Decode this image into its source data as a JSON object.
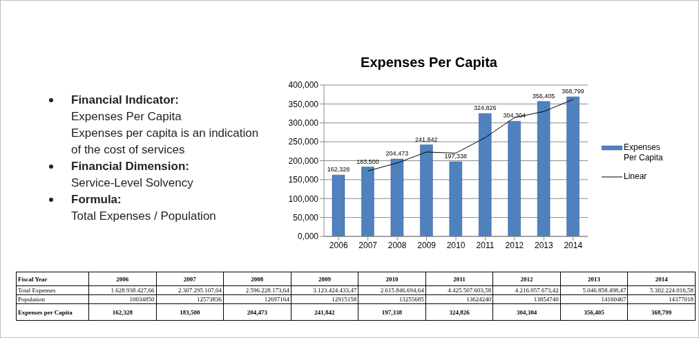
{
  "chart_data": {
    "type": "bar",
    "title": "Expenses Per Capita",
    "categories": [
      "2006",
      "2007",
      "2008",
      "2009",
      "2010",
      "2011",
      "2012",
      "2013",
      "2014"
    ],
    "series": [
      {
        "name": "Expenses Per Capita",
        "color": "#4f81bd",
        "values": [
          162.328,
          183.5,
          204.473,
          241.842,
          197.338,
          324.826,
          304.304,
          356.405,
          368.799
        ],
        "value_labels": [
          "162,328",
          "183,500",
          "204,473",
          "241,842",
          "197,338",
          "324,826",
          "304,304",
          "356,405",
          "368,799"
        ]
      },
      {
        "name": "Linear",
        "type": "line",
        "color": "#000000",
        "values": [
          null,
          173,
          194,
          223,
          220,
          261,
          314,
          330,
          362
        ]
      }
    ],
    "ylim": [
      0,
      400
    ],
    "yticks": [
      {
        "value": 0,
        "label": "0,000"
      },
      {
        "value": 50,
        "label": "50,000"
      },
      {
        "value": 100,
        "label": "100,000"
      },
      {
        "value": 150,
        "label": "150,000"
      },
      {
        "value": 200,
        "label": "200,000"
      },
      {
        "value": 250,
        "label": "250,000"
      },
      {
        "value": 300,
        "label": "300,000"
      },
      {
        "value": 350,
        "label": "350,000"
      },
      {
        "value": 400,
        "label": "400,000"
      }
    ],
    "grid": "y",
    "legend": "right",
    "annotations": [
      "Financial Indicator:",
      "Expenses Per Capita",
      "Expenses per capita is an indication of the cost of services",
      "Financial Dimension:",
      "Service-Level  Solvency",
      "Formula:",
      "Total Expenses / Population",
      "Fiscal Year",
      "Total Expenses",
      "1.628.938.427,66",
      "2.307.295.107,04",
      "2.596.228.173,64",
      "3.123.424.433,47",
      "2.615.846.694,64",
      "4.425.507.603,58",
      "4.216.057.673,42",
      "5.046.858.498,47",
      "5.302.224.016,58",
      "Population",
      "10034850",
      "12573836",
      "12697164",
      "12915158",
      "13255685",
      "13624240",
      "13854740",
      "14160467",
      "14377018",
      "Expenses per Capita"
    ]
  }
}
